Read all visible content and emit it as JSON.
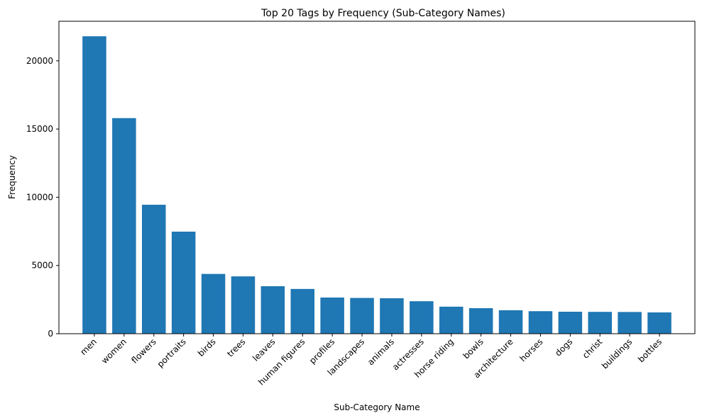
{
  "chart_data": {
    "type": "bar",
    "title": "Top 20 Tags by Frequency (Sub-Category Names)",
    "xlabel": "Sub-Category Name",
    "ylabel": "Frequency",
    "categories": [
      "men",
      "women",
      "flowers",
      "portraits",
      "birds",
      "trees",
      "leaves",
      "human figures",
      "profiles",
      "landscapes",
      "animals",
      "actresses",
      "horse riding",
      "bowls",
      "architecture",
      "horses",
      "dogs",
      "christ",
      "buildings",
      "bottles"
    ],
    "values": [
      21800,
      15800,
      9450,
      7480,
      4380,
      4200,
      3480,
      3280,
      2650,
      2620,
      2600,
      2380,
      1980,
      1870,
      1720,
      1650,
      1610,
      1600,
      1590,
      1560
    ],
    "ylim": [
      0,
      22900
    ],
    "yticks": [
      0,
      5000,
      10000,
      15000,
      20000
    ],
    "bar_color": "#1f77b4",
    "grid": false,
    "legend": false
  }
}
